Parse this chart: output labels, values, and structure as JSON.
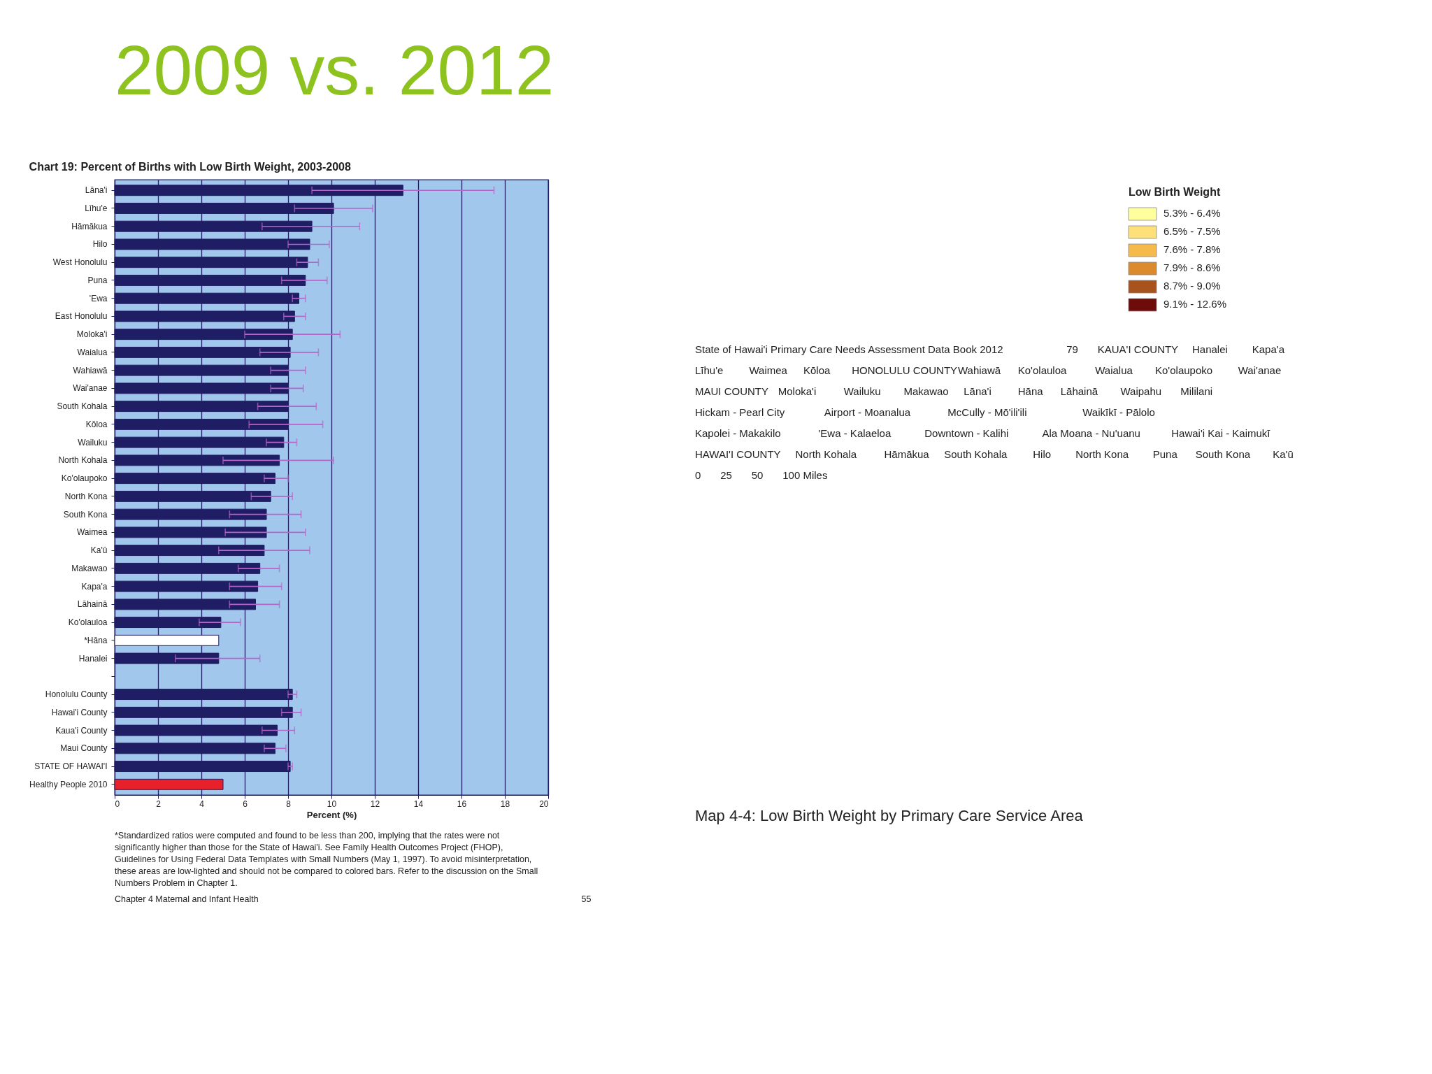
{
  "chart_data": [
    {
      "type": "other",
      "title": "2009 vs. 2012"
    },
    {
      "type": "bar",
      "orientation": "horizontal",
      "title": "Chart 19: Percent of Births with Low Birth Weight, 2003-2008",
      "xlabel": "Percent (%)",
      "categories": [
        "Lāna'i",
        "Līhu'e",
        "Hāmākua",
        "Hilo",
        "West Honolulu",
        "Puna",
        "'Ewa",
        "East Honolulu",
        "Moloka'i",
        "Waialua",
        "Wahiawā",
        "Wai'anae",
        "South Kohala",
        "Kōloa",
        "Wailuku",
        "North Kohala",
        "Ko'olaupoko",
        "North Kona",
        "South Kona",
        "Waimea",
        "Ka'ū",
        "Makawao",
        "Kapa'a",
        "Lāhainā",
        "Ko'olauloa",
        "*Hāna",
        "Hanalei",
        null,
        "Honolulu County",
        "Hawai'i County",
        "Kaua'i County",
        "Maui County",
        "STATE OF HAWAI'I",
        "Healthy People 2010"
      ],
      "values": [
        13.3,
        10.1,
        9.1,
        9.0,
        8.9,
        8.8,
        8.5,
        8.3,
        8.2,
        8.1,
        8.0,
        8.0,
        8.0,
        8.0,
        7.8,
        7.6,
        7.4,
        7.2,
        7.0,
        7.0,
        6.9,
        6.7,
        6.6,
        6.5,
        4.9,
        4.8,
        4.8,
        null,
        8.2,
        8.2,
        7.5,
        7.4,
        8.1,
        5.0
      ],
      "errors": [
        [
          9.1,
          17.5
        ],
        [
          8.3,
          11.9
        ],
        [
          6.8,
          11.3
        ],
        [
          8.0,
          9.9
        ],
        [
          8.4,
          9.4
        ],
        [
          7.7,
          9.8
        ],
        [
          8.2,
          8.8
        ],
        [
          7.8,
          8.8
        ],
        [
          6.0,
          10.4
        ],
        [
          6.7,
          9.4
        ],
        [
          7.2,
          8.8
        ],
        [
          7.2,
          8.7
        ],
        [
          6.6,
          9.3
        ],
        [
          6.2,
          9.6
        ],
        [
          7.0,
          8.4
        ],
        [
          5.0,
          10.1
        ],
        [
          6.9,
          8.0
        ],
        [
          6.3,
          8.2
        ],
        [
          5.3,
          8.6
        ],
        [
          5.1,
          8.8
        ],
        [
          4.8,
          9.0
        ],
        [
          5.7,
          7.6
        ],
        [
          5.3,
          7.7
        ],
        [
          5.3,
          7.6
        ],
        [
          3.9,
          5.8
        ],
        null,
        [
          2.8,
          6.7
        ],
        null,
        [
          8.0,
          8.4
        ],
        [
          7.7,
          8.6
        ],
        [
          6.8,
          8.3
        ],
        [
          6.9,
          7.9
        ],
        [
          8.0,
          8.2
        ],
        null
      ],
      "colors": [
        "#1f1d63",
        "#1f1d63",
        "#1f1d63",
        "#1f1d63",
        "#1f1d63",
        "#1f1d63",
        "#1f1d63",
        "#1f1d63",
        "#1f1d63",
        "#1f1d63",
        "#1f1d63",
        "#1f1d63",
        "#1f1d63",
        "#1f1d63",
        "#1f1d63",
        "#1f1d63",
        "#1f1d63",
        "#1f1d63",
        "#1f1d63",
        "#1f1d63",
        "#1f1d63",
        "#1f1d63",
        "#1f1d63",
        "#1f1d63",
        "#1f1d63",
        "#ffffff",
        "#1f1d63",
        "#1f1d63",
        "#1f1d63",
        "#1f1d63",
        "#1f1d63",
        "#1f1d63",
        "#1f1d63",
        "#e8202a"
      ],
      "xlim": [
        0,
        20
      ],
      "xticks": [
        0,
        2,
        4,
        6,
        8,
        10,
        12,
        14,
        16,
        18,
        20
      ],
      "grid": "x",
      "annotations": [
        "*Standardized ratios were computed and found to be less than 200, implying that the rates were not significantly higher than those for the State of Hawai'i. See Family Health Outcomes Project (FHOP), Guidelines for Using Federal Data Templates with Small Numbers (May 1, 1997). To avoid misinterpretation, these areas are low-lighted and should not be compared to colored bars. Refer to the discussion on the Small Numbers Problem in Chapter 1.",
        "Chapter 4 Maternal and Infant Health",
        "55"
      ]
    },
    {
      "type": "other",
      "title": "Map 4-4: Low Birth Weight by Primary Care Service Area",
      "legend_title": "Low Birth Weight",
      "categories": [
        "5.3% - 6.4%",
        "6.5% - 7.5%",
        "7.6% - 7.8%",
        "7.9% - 8.6%",
        "8.7% - 9.0%",
        "9.1% - 12.6%"
      ],
      "colors": [
        "#ffff9e",
        "#fde07a",
        "#f6b94b",
        "#dc8a2e",
        "#a9531c",
        "#6e0b0b"
      ],
      "annotations": [
        "State of Hawai'i Primary Care Needs Assessment Data Book 2012",
        "79",
        "KAUA'I COUNTY",
        "Hanalei",
        "Kapa'a",
        "Līhu'e",
        "Waimea",
        "Kōloa",
        "HONOLULU COUNTY",
        "Wahiawā",
        "Ko'olauloa",
        "Waialua",
        "Ko'olaupoko",
        "Wai'anae",
        "MAUI COUNTY",
        "Moloka'i",
        "Wailuku",
        "Makawao",
        "Lāna'i",
        "Hāna",
        "Lāhainā",
        "Waipahu",
        "Mililani",
        "Hickam - Pearl City",
        "Airport - Moanalua",
        "McCully - Mō'ili'ili",
        "Waikīkī - Pālolo",
        "Kapolei - Makakilo",
        "'Ewa - Kalaeloa",
        "Downtown - Kalihi",
        "Ala Moana - Nu'uanu",
        "Hawai'i Kai - Kaimukī",
        "HAWAI'I COUNTY",
        "North Kohala",
        "Hāmākua",
        "South Kohala",
        "Hilo",
        "North Kona",
        "Puna",
        "South Kona",
        "Ka'ū",
        "0",
        "25",
        "50",
        "100 Miles"
      ]
    }
  ]
}
